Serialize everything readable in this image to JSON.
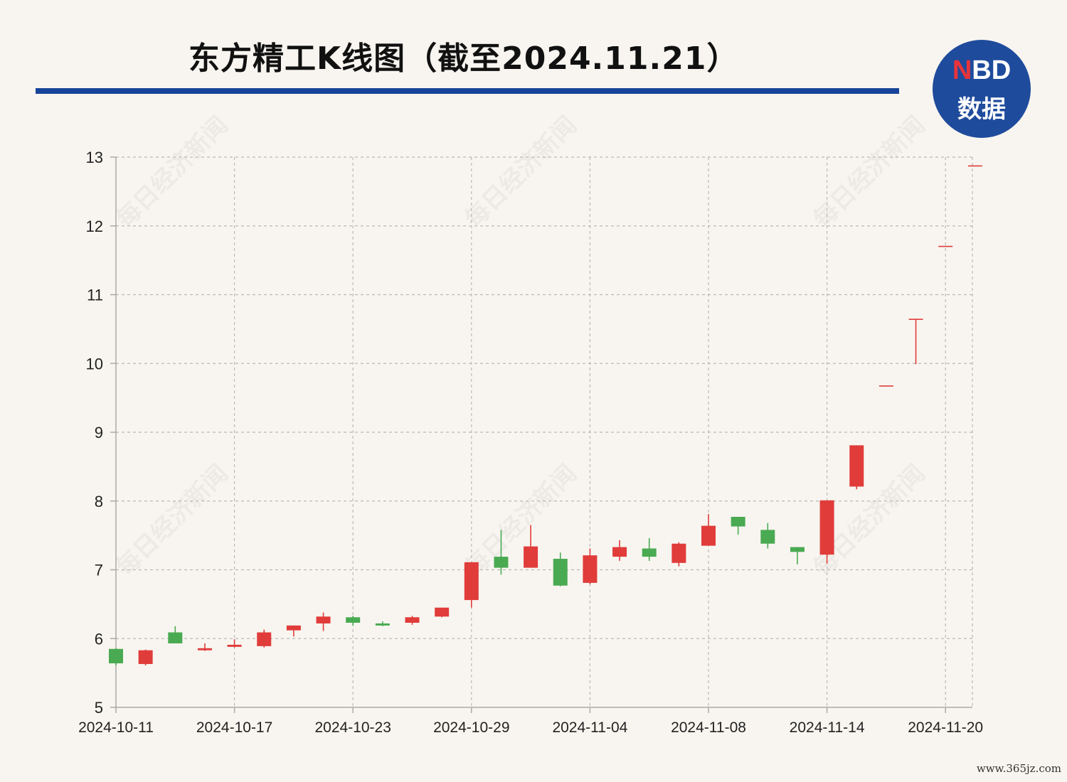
{
  "header": {
    "title": "东方精工K线图（截至2024.11.21）",
    "logo_top_n": "N",
    "logo_top_rest": "BD",
    "logo_bottom": "数据"
  },
  "watermark": "每日经济新闻",
  "footer": {
    "url": "www.365jz.com"
  },
  "colors": {
    "up": "#e03c3a",
    "down": "#4aaa52",
    "rule": "#17449a",
    "logo": "#1f4b9c"
  },
  "chart_data": {
    "type": "candlestick",
    "title": "东方精工K线图（截至2024.11.21）",
    "ylim": [
      5,
      13
    ],
    "yticks": [
      5,
      6,
      7,
      8,
      9,
      10,
      11,
      12,
      13
    ],
    "xtick_labels": [
      "2024-10-11",
      "2024-10-17",
      "2024-10-23",
      "2024-10-29",
      "2024-11-04",
      "2024-11-08",
      "2024-11-14",
      "2024-11-20"
    ],
    "grid": true,
    "candles": [
      {
        "o": 5.85,
        "h": 5.86,
        "l": 5.61,
        "c": 5.64
      },
      {
        "o": 5.63,
        "h": 5.84,
        "l": 5.61,
        "c": 5.83
      },
      {
        "o": 6.09,
        "h": 6.18,
        "l": 5.93,
        "c": 5.93
      },
      {
        "o": 5.83,
        "h": 5.93,
        "l": 5.82,
        "c": 5.86
      },
      {
        "o": 5.88,
        "h": 5.99,
        "l": 5.87,
        "c": 5.91
      },
      {
        "o": 5.89,
        "h": 6.13,
        "l": 5.87,
        "c": 6.09
      },
      {
        "o": 6.12,
        "h": 6.19,
        "l": 6.03,
        "c": 6.19
      },
      {
        "o": 6.22,
        "h": 6.38,
        "l": 6.11,
        "c": 6.32
      },
      {
        "o": 6.31,
        "h": 6.33,
        "l": 6.19,
        "c": 6.23
      },
      {
        "o": 6.22,
        "h": 6.25,
        "l": 6.18,
        "c": 6.19
      },
      {
        "o": 6.23,
        "h": 6.33,
        "l": 6.2,
        "c": 6.31
      },
      {
        "o": 6.32,
        "h": 6.45,
        "l": 6.31,
        "c": 6.45
      },
      {
        "o": 6.56,
        "h": 7.11,
        "l": 6.45,
        "c": 7.11
      },
      {
        "o": 7.19,
        "h": 7.58,
        "l": 6.93,
        "c": 7.03
      },
      {
        "o": 7.03,
        "h": 7.65,
        "l": 7.03,
        "c": 7.34
      },
      {
        "o": 7.16,
        "h": 7.25,
        "l": 6.76,
        "c": 6.77
      },
      {
        "o": 6.81,
        "h": 7.31,
        "l": 6.79,
        "c": 7.21
      },
      {
        "o": 7.19,
        "h": 7.43,
        "l": 7.13,
        "c": 7.33
      },
      {
        "o": 7.31,
        "h": 7.46,
        "l": 7.13,
        "c": 7.19
      },
      {
        "o": 7.1,
        "h": 7.4,
        "l": 7.05,
        "c": 7.38
      },
      {
        "o": 7.35,
        "h": 7.81,
        "l": 7.35,
        "c": 7.64
      },
      {
        "o": 7.77,
        "h": 7.77,
        "l": 7.51,
        "c": 7.63
      },
      {
        "o": 7.58,
        "h": 7.68,
        "l": 7.31,
        "c": 7.38
      },
      {
        "o": 7.33,
        "h": 7.33,
        "l": 7.08,
        "c": 7.26
      },
      {
        "o": 7.22,
        "h": 8.01,
        "l": 7.09,
        "c": 8.01
      },
      {
        "o": 8.21,
        "h": 8.81,
        "l": 8.17,
        "c": 8.81
      },
      {
        "o": 9.68,
        "h": 9.68,
        "l": 9.68,
        "c": 9.68
      },
      {
        "o": 10.65,
        "h": 10.65,
        "l": 9.99,
        "c": 10.65
      },
      {
        "o": 11.71,
        "h": 11.71,
        "l": 11.71,
        "c": 11.71
      },
      {
        "o": 12.88,
        "h": 12.88,
        "l": 12.88,
        "c": 12.88
      }
    ]
  }
}
